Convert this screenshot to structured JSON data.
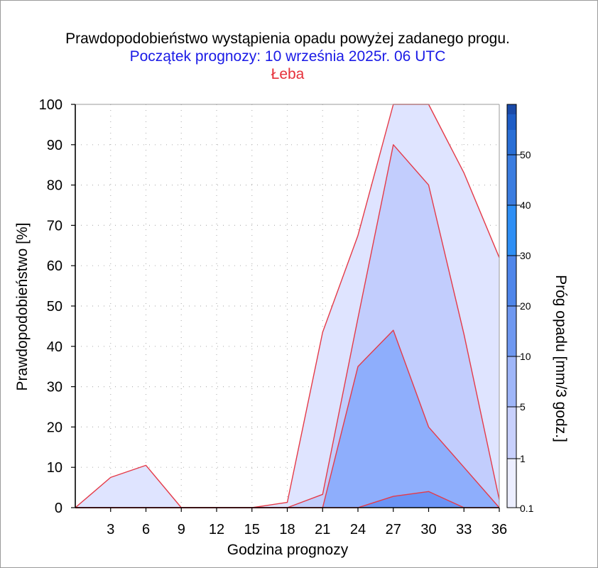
{
  "chart_data": {
    "type": "area",
    "title": "Prawdopodobieństwo wystąpienia opadu powyżej zadanego progu.",
    "subtitle": "Początek prognozy: 10 września 2025r. 06 UTC",
    "location": "Łeba",
    "xlabel": "Godzina prognozy",
    "ylabel": "Prawdopodobieństwo [%]",
    "colorbar_label": "Próg opadu [mm/3 godz.]",
    "xlim": [
      0,
      36
    ],
    "ylim": [
      0,
      100
    ],
    "x_ticks": [
      3,
      6,
      9,
      12,
      15,
      18,
      21,
      24,
      27,
      30,
      33,
      36
    ],
    "y_ticks": [
      0,
      10,
      20,
      30,
      40,
      50,
      60,
      70,
      80,
      90,
      100
    ],
    "grid": true,
    "x": [
      0,
      3,
      6,
      9,
      12,
      15,
      18,
      21,
      24,
      27,
      30,
      33,
      36
    ],
    "series": [
      {
        "threshold": "0.1",
        "color": "#dfe4ff",
        "values": [
          0,
          7.5,
          10.5,
          0,
          0,
          0,
          1.3,
          43.5,
          67.5,
          100,
          100,
          83,
          62
        ]
      },
      {
        "threshold": "1",
        "color": "#c2cdfd",
        "values": [
          0,
          0,
          0,
          0,
          0,
          0,
          0,
          3.3,
          47,
          90,
          80,
          43,
          2
        ]
      },
      {
        "threshold": "5",
        "color": "#8eaefc",
        "values": [
          0,
          0,
          0,
          0,
          0,
          0,
          0,
          0,
          35,
          44,
          20,
          10,
          0
        ]
      },
      {
        "threshold": "10",
        "color": "#6a94f6",
        "values": [
          0,
          0,
          0,
          0,
          0,
          0,
          0,
          0,
          0,
          2.8,
          4,
          0,
          0
        ]
      }
    ],
    "colorbar": {
      "labels": [
        "0.1",
        "1",
        "5",
        "10",
        "20",
        "30",
        "40",
        "50"
      ],
      "colors": [
        "#eceeff",
        "#c8d0fc",
        "#9fb6f8",
        "#6f98f0",
        "#4f86ea",
        "#2e8ff5",
        "#3b7de0",
        "#2a6fd6",
        "#1e5dc6",
        "#1a4aa8"
      ]
    }
  }
}
